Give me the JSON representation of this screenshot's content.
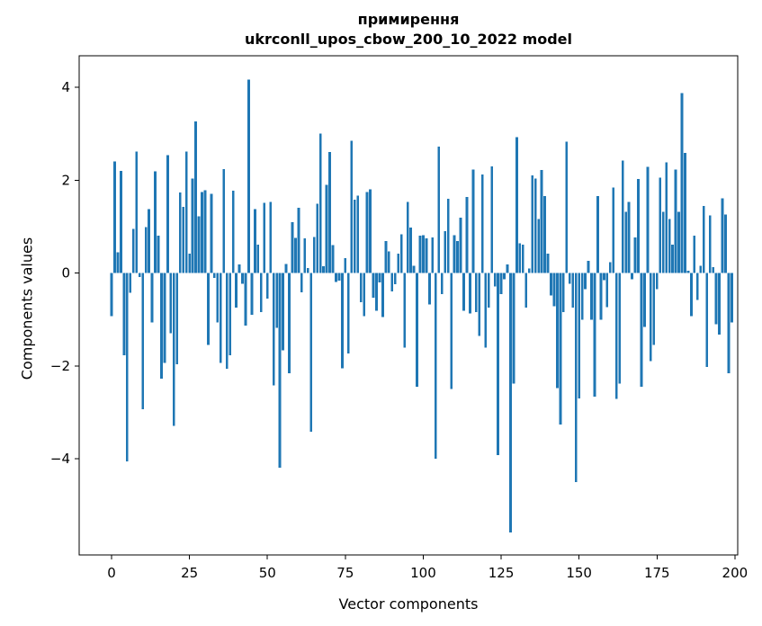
{
  "title": {
    "line1": "примирення",
    "line2": "ukrconll_upos_cbow_200_10_2022 model"
  },
  "axes": {
    "xlabel": "Vector components",
    "ylabel": "Components values",
    "x_ticks": [
      0,
      25,
      50,
      75,
      100,
      125,
      150,
      175,
      200
    ],
    "y_ticks": [
      -4,
      -2,
      0,
      2,
      4
    ]
  },
  "colors": {
    "bar": "#1f77b4",
    "axis": "#000000",
    "background": "#ffffff"
  },
  "chart_data": {
    "type": "bar",
    "title": "примирення\nukrconll_upos_cbow_200_10_2022 model",
    "xlabel": "Vector components",
    "ylabel": "Components values",
    "x_start": 0,
    "x_end": 199,
    "xlim": [
      -10.4,
      200.9
    ],
    "ylim": [
      -6.07,
      4.68
    ],
    "grid": false,
    "legend": "none",
    "bar_color": "#1f77b4",
    "values": [
      -0.93,
      2.4,
      0.45,
      2.2,
      -1.77,
      -4.06,
      -0.42,
      0.95,
      2.62,
      -0.08,
      -2.93,
      0.99,
      1.38,
      -1.06,
      2.19,
      0.81,
      -2.27,
      -1.93,
      2.54,
      -1.3,
      -3.29,
      -1.96,
      1.74,
      1.43,
      2.62,
      0.42,
      2.04,
      3.27,
      1.22,
      1.75,
      1.78,
      -1.55,
      1.71,
      -0.1,
      -1.06,
      -1.93,
      2.24,
      -2.06,
      -1.77,
      1.77,
      -0.74,
      0.19,
      -0.23,
      -1.13,
      4.17,
      -0.9,
      1.38,
      0.61,
      -0.84,
      1.51,
      -0.55,
      1.53,
      -2.42,
      -1.18,
      -4.19,
      -1.66,
      0.2,
      -2.16,
      1.1,
      0.76,
      1.41,
      -0.41,
      0.75,
      0.11,
      -3.42,
      0.78,
      1.49,
      3.0,
      0.15,
      1.9,
      2.61,
      0.6,
      -0.19,
      -0.16,
      -2.05,
      0.32,
      -1.73,
      2.85,
      1.58,
      1.67,
      -0.63,
      -0.93,
      1.75,
      1.8,
      -0.53,
      -0.81,
      -0.2,
      -0.95,
      0.69,
      0.47,
      -0.39,
      -0.24,
      0.42,
      0.84,
      -1.61,
      1.53,
      0.98,
      0.16,
      -2.45,
      0.81,
      0.82,
      0.75,
      -0.68,
      0.77,
      -4.0,
      2.72,
      -0.45,
      0.9,
      1.6,
      -2.5,
      0.82,
      0.69,
      1.19,
      -0.81,
      1.64,
      -0.87,
      2.23,
      -0.84,
      -1.35,
      2.12,
      -1.61,
      -0.74,
      2.3,
      -0.29,
      -3.92,
      -0.45,
      -0.13,
      0.19,
      -5.59,
      -2.38,
      2.93,
      0.64,
      0.61,
      -0.74,
      0.1,
      2.1,
      2.04,
      1.16,
      2.22,
      1.66,
      0.42,
      -0.48,
      -0.71,
      -2.48,
      -3.26,
      -0.84,
      2.83,
      -0.23,
      -0.74,
      -4.5,
      -2.7,
      -1.0,
      -0.35,
      0.26,
      -1.0,
      -2.66,
      1.66,
      -1.0,
      -0.15,
      -0.73,
      0.23,
      1.84,
      -2.71,
      -2.38,
      2.42,
      1.32,
      1.53,
      -0.13,
      0.77,
      2.03,
      -2.45,
      -1.16,
      2.29,
      -1.9,
      -1.55,
      -0.35,
      2.06,
      1.32,
      2.38,
      1.16,
      0.61,
      2.23,
      1.32,
      3.88,
      2.59,
      0.05,
      -0.93,
      0.81,
      -0.58,
      0.16,
      1.45,
      -2.02,
      1.24,
      0.13,
      -1.1,
      -1.32,
      1.61,
      1.26,
      -2.16,
      -1.06
    ]
  }
}
